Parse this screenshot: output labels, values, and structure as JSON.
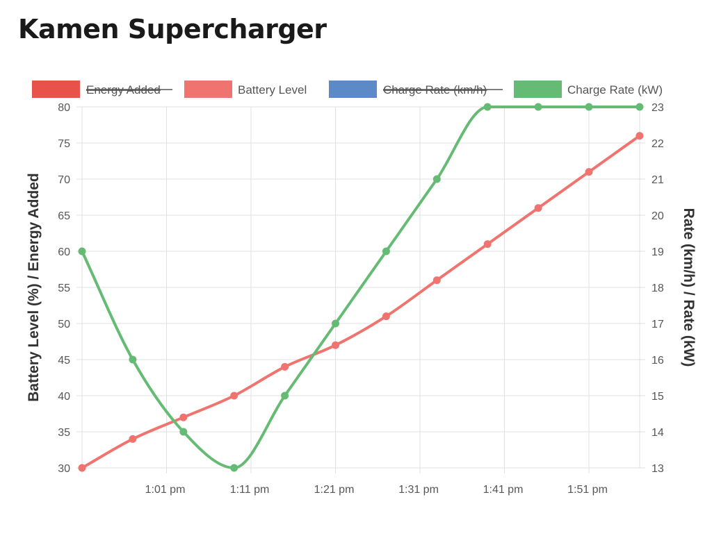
{
  "page": {
    "title": "Kamen Supercharger"
  },
  "colors": {
    "energy_added": "#e8524a",
    "battery_level": "#ef746f",
    "charge_rate_kmh": "#5b8ac6",
    "charge_rate_kw": "#66bb74",
    "grid": "#e0e0e0",
    "text": "#555555"
  },
  "chart_data": {
    "type": "line",
    "title": "Kamen Supercharger",
    "legend": {
      "position": "top",
      "items": [
        {
          "label": "Energy Added",
          "color": "#e8524a",
          "hidden": true
        },
        {
          "label": "Battery Level",
          "color": "#ef746f",
          "hidden": false
        },
        {
          "label": "Charge Rate (km/h)",
          "color": "#5b8ac6",
          "hidden": true
        },
        {
          "label": "Charge Rate (kW)",
          "color": "#66bb74",
          "hidden": false
        }
      ]
    },
    "x_axis": {
      "type": "time",
      "range": [
        "12:51 pm",
        "1:57 pm"
      ],
      "ticks": [
        "1:01 pm",
        "1:11 pm",
        "1:21 pm",
        "1:31 pm",
        "1:41 pm",
        "1:51 pm"
      ]
    },
    "y_left": {
      "label": "Battery Level (%) / Energy Added",
      "range": [
        30,
        80
      ],
      "ticks": [
        "80",
        "75",
        "70",
        "65",
        "60",
        "55",
        "50",
        "45",
        "40",
        "35",
        "30"
      ]
    },
    "y_right": {
      "label": "Rate (km/h) / Rate (kW)",
      "range": [
        13,
        23
      ],
      "ticks": [
        "23",
        "22",
        "21",
        "20",
        "19",
        "18",
        "17",
        "16",
        "15",
        "14",
        "13"
      ]
    },
    "grid": true,
    "series": [
      {
        "name": "Battery Level",
        "axis": "left",
        "color": "#ef746f",
        "times": [
          "12:51 pm",
          "12:57 pm",
          "1:03 pm",
          "1:09 pm",
          "1:15 pm",
          "1:21 pm",
          "1:27 pm",
          "1:33 pm",
          "1:39 pm",
          "1:45 pm",
          "1:51 pm",
          "1:57 pm"
        ],
        "values": [
          30,
          34,
          37,
          40,
          44,
          47,
          51,
          56,
          61,
          66,
          71,
          76
        ]
      },
      {
        "name": "Charge Rate (kW)",
        "axis": "right",
        "color": "#66bb74",
        "times": [
          "12:51 pm",
          "12:57 pm",
          "1:03 pm",
          "1:09 pm",
          "1:15 pm",
          "1:21 pm",
          "1:27 pm",
          "1:33 pm",
          "1:39 pm",
          "1:45 pm",
          "1:51 pm",
          "1:57 pm"
        ],
        "values": [
          19,
          16,
          14,
          13,
          15,
          17,
          19,
          21,
          23,
          23,
          23,
          23
        ]
      }
    ]
  }
}
